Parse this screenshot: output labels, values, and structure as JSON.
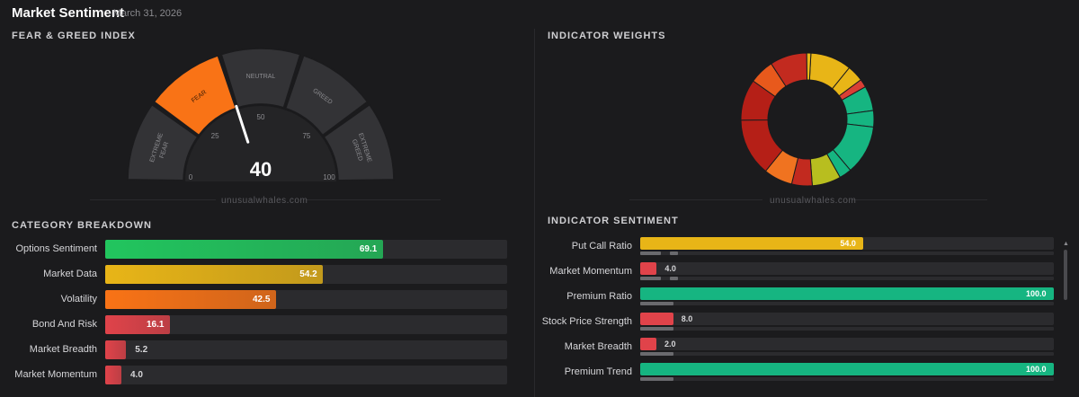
{
  "header": {
    "title": "Market Sentiment",
    "date": "- March 31, 2026"
  },
  "fear_greed": {
    "section_title": "FEAR & GREED INDEX",
    "value": 40,
    "value_label": "40",
    "zones": [
      "EXTREME FEAR",
      "FEAR",
      "NEUTRAL",
      "GREED",
      "EXTREME GREED"
    ],
    "active_zone": "FEAR",
    "ticks": [
      "0",
      "25",
      "50",
      "75",
      "100"
    ],
    "watermark": "unusualwhales.com",
    "colors": {
      "segment": "#333336",
      "active": "#f97316",
      "needle": "#ffffff"
    }
  },
  "indicator_weights": {
    "section_title": "INDICATOR WEIGHTS",
    "watermark": "unusualwhales.com",
    "segments": [
      {
        "color": "#e8b517",
        "weight": 10
      },
      {
        "color": "#e8b517",
        "weight": 4
      },
      {
        "color": "#d93f35",
        "weight": 2
      },
      {
        "color": "#16b581",
        "weight": 6
      },
      {
        "color": "#16b581",
        "weight": 4
      },
      {
        "color": "#16b581",
        "weight": 12
      },
      {
        "color": "#16b581",
        "weight": 3
      },
      {
        "color": "#b8be1f",
        "weight": 7
      },
      {
        "color": "#c22a1f",
        "weight": 5
      },
      {
        "color": "#f07320",
        "weight": 7
      },
      {
        "color": "#b51f17",
        "weight": 14
      },
      {
        "color": "#b51f17",
        "weight": 10
      },
      {
        "color": "#e8591c",
        "weight": 6
      },
      {
        "color": "#c22a1f",
        "weight": 9
      },
      {
        "color": "#e8b517",
        "weight": 1
      }
    ]
  },
  "category_breakdown": {
    "section_title": "CATEGORY BREAKDOWN",
    "items": [
      {
        "label": "Options Sentiment",
        "value": 69.1,
        "value_label": "69.1",
        "color": "#22c55e"
      },
      {
        "label": "Market Data",
        "value": 54.2,
        "value_label": "54.2",
        "color": "#e8b517"
      },
      {
        "label": "Volatility",
        "value": 42.5,
        "value_label": "42.5",
        "color": "#f97316"
      },
      {
        "label": "Bond And Risk",
        "value": 16.1,
        "value_label": "16.1",
        "color": "#e0434a"
      },
      {
        "label": "Market Breadth",
        "value": 5.2,
        "value_label": "5.2",
        "color": "#e0434a"
      },
      {
        "label": "Market Momentum",
        "value": 4.0,
        "value_label": "4.0",
        "color": "#e0434a"
      }
    ]
  },
  "indicator_sentiment": {
    "section_title": "INDICATOR SENTIMENT",
    "items": [
      {
        "label": "Put Call Ratio",
        "value": 54.0,
        "value_label": "54.0",
        "color": "#e8b517",
        "sub": [
          0.05,
          0.02
        ]
      },
      {
        "label": "Market Momentum",
        "value": 4.0,
        "value_label": "4.0",
        "color": "#e0434a",
        "sub": [
          0.05,
          0.02
        ]
      },
      {
        "label": "Premium Ratio",
        "value": 100.0,
        "value_label": "100.0",
        "color": "#16b581",
        "sub": [
          0.08,
          0
        ]
      },
      {
        "label": "Stock Price Strength",
        "value": 8.0,
        "value_label": "8.0",
        "color": "#e0434a",
        "sub": [
          0.08,
          0
        ]
      },
      {
        "label": "Market Breadth",
        "value": 2.0,
        "value_label": "2.0",
        "color": "#e0434a",
        "sub": [
          0.08,
          0
        ]
      },
      {
        "label": "Premium Trend",
        "value": 100.0,
        "value_label": "100.0",
        "color": "#16b581",
        "sub": [
          0.08,
          0
        ]
      }
    ]
  }
}
